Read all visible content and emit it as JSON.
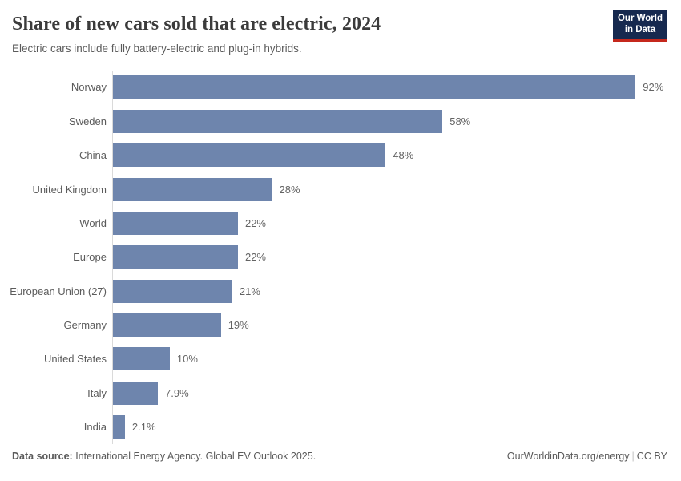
{
  "header": {
    "title": "Share of new cars sold that are electric, 2024",
    "subtitle": "Electric cars include fully battery-electric and plug-in hybrids."
  },
  "logo": {
    "line1": "Our World",
    "line2": "in Data",
    "bg_color": "#16294f",
    "accent_color": "#c5281c"
  },
  "chart_data": {
    "type": "bar",
    "orientation": "horizontal",
    "title": "Share of new cars sold that are electric, 2024",
    "subtitle": "Electric cars include fully battery-electric and plug-in hybrids.",
    "categories": [
      "Norway",
      "Sweden",
      "China",
      "United Kingdom",
      "World",
      "Europe",
      "European Union (27)",
      "Germany",
      "United States",
      "Italy",
      "India"
    ],
    "values": [
      92,
      58,
      48,
      28,
      22,
      22,
      21,
      19,
      10,
      7.9,
      2.1
    ],
    "value_labels": [
      "92%",
      "58%",
      "48%",
      "28%",
      "22%",
      "22%",
      "21%",
      "19%",
      "10%",
      "7.9%",
      "2.1%"
    ],
    "unit": "%",
    "xlim": [
      0,
      100
    ],
    "xlabel": "",
    "ylabel": "",
    "grid": false,
    "legend": "none",
    "bar_color": "#6e85ad",
    "axis_line_color": "#dadada"
  },
  "footer": {
    "source_label": "Data source:",
    "source_text": " International Energy Agency. Global EV Outlook 2025.",
    "site": "OurWorldinData.org/energy",
    "separator": "|",
    "license": "CC BY"
  }
}
